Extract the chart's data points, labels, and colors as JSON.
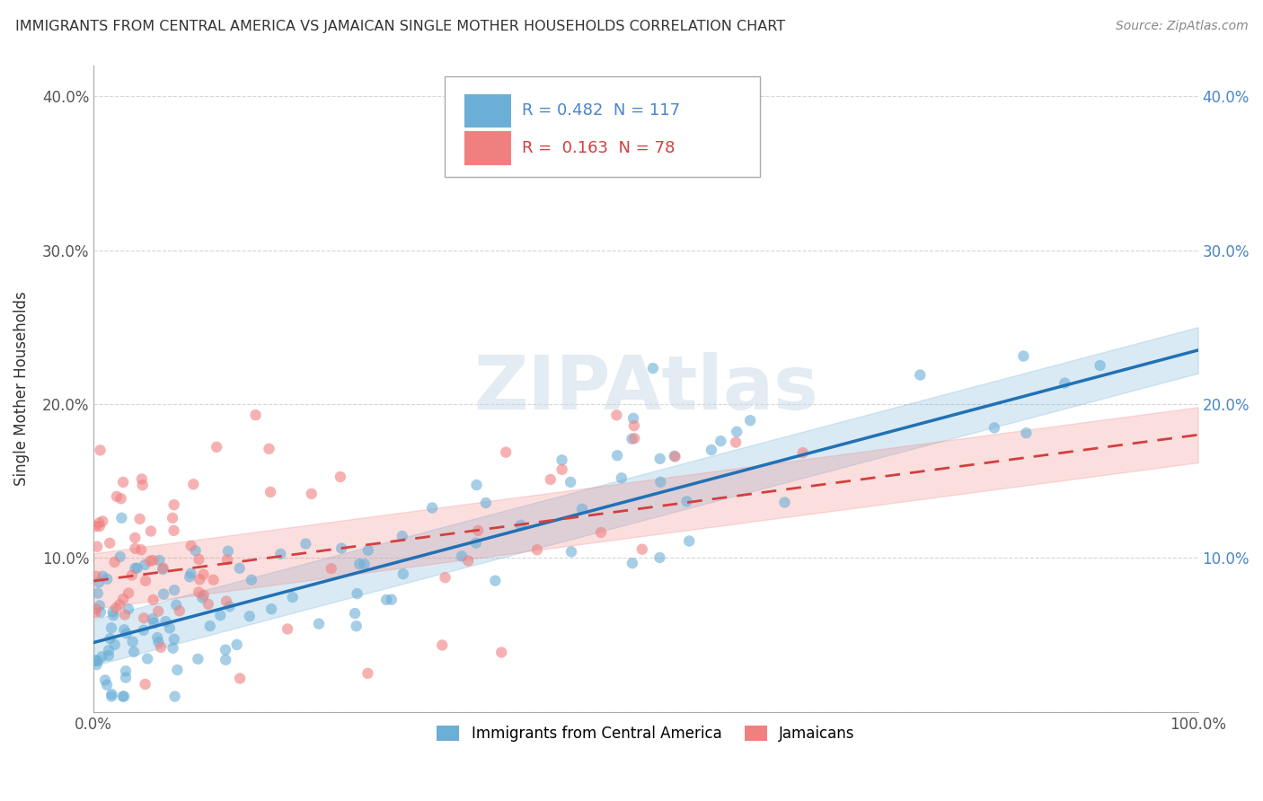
{
  "title": "IMMIGRANTS FROM CENTRAL AMERICA VS JAMAICAN SINGLE MOTHER HOUSEHOLDS CORRELATION CHART",
  "source": "Source: ZipAtlas.com",
  "ylabel": "Single Mother Households",
  "xlim": [
    0,
    1.0
  ],
  "ylim": [
    0,
    0.42
  ],
  "yticks": [
    0.0,
    0.1,
    0.2,
    0.3,
    0.4
  ],
  "ytick_labels": [
    "",
    "10.0%",
    "20.0%",
    "30.0%",
    "40.0%"
  ],
  "xtick_labels": [
    "0.0%",
    "100.0%"
  ],
  "blue_R": 0.482,
  "blue_N": 117,
  "pink_R": 0.163,
  "pink_N": 78,
  "blue_color": "#6baed6",
  "pink_color": "#f08080",
  "blue_line_color": "#2171b5",
  "pink_line_color": "#d43f3f",
  "background_color": "#ffffff",
  "watermark": "ZIPAtlas",
  "seed": 42,
  "blue_slope": 0.19,
  "blue_intercept": 0.045,
  "pink_slope": 0.095,
  "pink_intercept": 0.085
}
